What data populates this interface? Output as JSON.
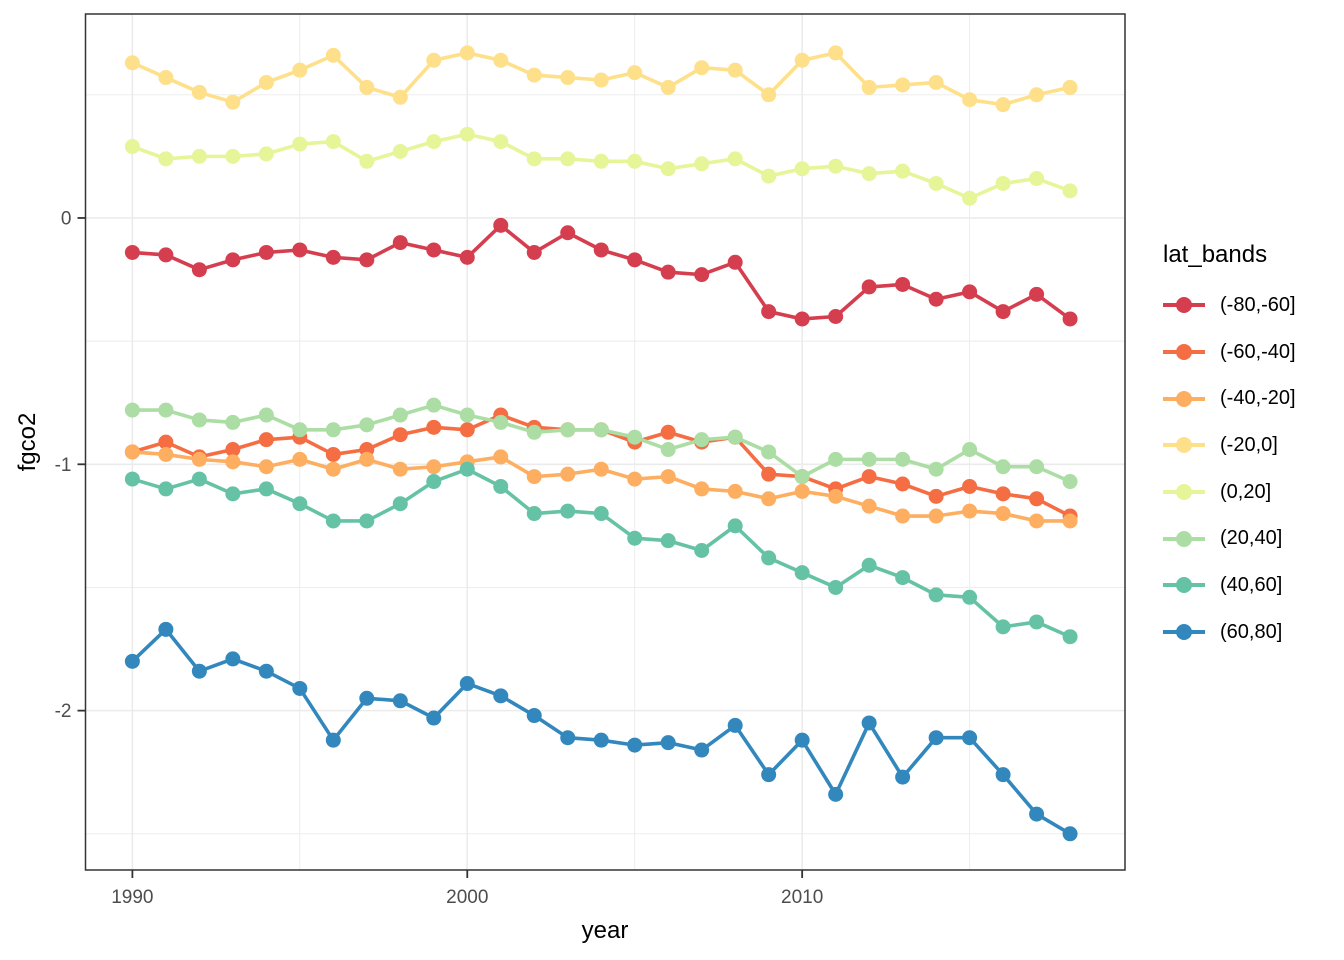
{
  "chart_data": {
    "type": "line",
    "title": "",
    "xlabel": "year",
    "ylabel": "fgco2",
    "legend_title": "lat_bands",
    "legend_position": "right",
    "grid": true,
    "xlim": [
      1988.6,
      2019.64
    ],
    "ylim": [
      -2.647,
      0.828
    ],
    "x_major_ticks": [
      1990,
      2000,
      2010
    ],
    "x_minor_gridlines": [
      1995,
      2005,
      2015
    ],
    "y_major_ticks": [
      0,
      -1,
      -2
    ],
    "y_minor_gridlines": [
      0.5,
      -0.5,
      -1.5,
      -2.5
    ],
    "x": [
      1990,
      1991,
      1992,
      1993,
      1994,
      1995,
      1996,
      1997,
      1998,
      1999,
      2000,
      2001,
      2002,
      2003,
      2004,
      2005,
      2006,
      2007,
      2008,
      2009,
      2010,
      2011,
      2012,
      2013,
      2014,
      2015,
      2016,
      2017,
      2018
    ],
    "series": [
      {
        "name": "(-80,-60]",
        "color": "#d53e4f",
        "values": [
          -0.14,
          -0.15,
          -0.21,
          -0.17,
          -0.14,
          -0.13,
          -0.16,
          -0.17,
          -0.1,
          -0.13,
          -0.16,
          -0.03,
          -0.14,
          -0.06,
          -0.13,
          -0.17,
          -0.22,
          -0.23,
          -0.18,
          -0.38,
          -0.41,
          -0.4,
          -0.28,
          -0.27,
          -0.33,
          -0.3,
          -0.38,
          -0.31,
          -0.41
        ]
      },
      {
        "name": "(-60,-40]",
        "color": "#f46d43",
        "values": [
          -0.95,
          -0.91,
          -0.97,
          -0.94,
          -0.9,
          -0.89,
          -0.96,
          -0.94,
          -0.88,
          -0.85,
          -0.86,
          -0.8,
          -0.85,
          -0.86,
          -0.86,
          -0.91,
          -0.87,
          -0.91,
          -0.89,
          -1.04,
          -1.05,
          -1.1,
          -1.05,
          -1.08,
          -1.13,
          -1.09,
          -1.12,
          -1.14,
          -1.21
        ]
      },
      {
        "name": "(-40,-20]",
        "color": "#fdae61",
        "values": [
          -0.95,
          -0.96,
          -0.98,
          -0.99,
          -1.01,
          -0.98,
          -1.02,
          -0.98,
          -1.02,
          -1.01,
          -0.99,
          -0.97,
          -1.05,
          -1.04,
          -1.02,
          -1.06,
          -1.05,
          -1.1,
          -1.11,
          -1.14,
          -1.11,
          -1.13,
          -1.17,
          -1.21,
          -1.21,
          -1.19,
          -1.2,
          -1.23,
          -1.23
        ]
      },
      {
        "name": "(-20,0]",
        "color": "#fee08b",
        "values": [
          0.63,
          0.57,
          0.51,
          0.47,
          0.55,
          0.6,
          0.66,
          0.53,
          0.49,
          0.64,
          0.67,
          0.64,
          0.58,
          0.57,
          0.56,
          0.59,
          0.53,
          0.61,
          0.6,
          0.5,
          0.64,
          0.67,
          0.53,
          0.54,
          0.55,
          0.48,
          0.46,
          0.5,
          0.53
        ]
      },
      {
        "name": "(0,20]",
        "color": "#e6f598",
        "values": [
          0.29,
          0.24,
          0.25,
          0.25,
          0.26,
          0.3,
          0.31,
          0.23,
          0.27,
          0.31,
          0.34,
          0.31,
          0.24,
          0.24,
          0.23,
          0.23,
          0.2,
          0.22,
          0.24,
          0.17,
          0.2,
          0.21,
          0.18,
          0.19,
          0.14,
          0.08,
          0.14,
          0.16,
          0.11
        ]
      },
      {
        "name": "(20,40]",
        "color": "#abdda4",
        "values": [
          -0.78,
          -0.78,
          -0.82,
          -0.83,
          -0.8,
          -0.86,
          -0.86,
          -0.84,
          -0.8,
          -0.76,
          -0.8,
          -0.83,
          -0.87,
          -0.86,
          -0.86,
          -0.89,
          -0.94,
          -0.9,
          -0.89,
          -0.95,
          -1.05,
          -0.98,
          -0.98,
          -0.98,
          -1.02,
          -0.94,
          -1.01,
          -1.01,
          -1.07
        ]
      },
      {
        "name": "(40,60]",
        "color": "#66c2a5",
        "values": [
          -1.06,
          -1.1,
          -1.06,
          -1.12,
          -1.1,
          -1.16,
          -1.23,
          -1.23,
          -1.16,
          -1.07,
          -1.02,
          -1.09,
          -1.2,
          -1.19,
          -1.2,
          -1.3,
          -1.31,
          -1.35,
          -1.25,
          -1.38,
          -1.44,
          -1.5,
          -1.41,
          -1.46,
          -1.53,
          -1.54,
          -1.66,
          -1.64,
          -1.7
        ]
      },
      {
        "name": "(60,80]",
        "color": "#3288bd",
        "values": [
          -1.8,
          -1.67,
          -1.84,
          -1.79,
          -1.84,
          -1.91,
          -2.12,
          -1.95,
          -1.96,
          -2.03,
          -1.89,
          -1.94,
          -2.02,
          -2.11,
          -2.12,
          -2.14,
          -2.13,
          -2.16,
          -2.06,
          -2.26,
          -2.12,
          -2.34,
          -2.05,
          -2.27,
          -2.11,
          -2.11,
          -2.26,
          -2.42,
          -2.5
        ]
      }
    ],
    "style": {
      "grid_color": "#ebebeb",
      "panel_border_color": "#333333",
      "tick_mark_color": "#333333",
      "tick_label_color": "#4d4d4d",
      "background": "#ffffff"
    }
  }
}
